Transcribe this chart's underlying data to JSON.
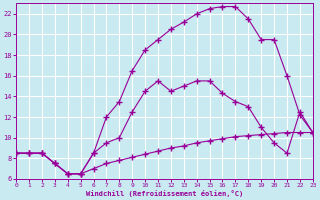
{
  "xlabel": "Windchill (Refroidissement éolien,°C)",
  "bg_color": "#c8eaf0",
  "line_color": "#990099",
  "grid_color": "#ffffff",
  "xmin": 0,
  "xmax": 23,
  "ymin": 6,
  "ymax": 23,
  "yticks": [
    6,
    8,
    10,
    12,
    14,
    16,
    18,
    20,
    22
  ],
  "xticks": [
    0,
    1,
    2,
    3,
    4,
    5,
    6,
    7,
    8,
    9,
    10,
    11,
    12,
    13,
    14,
    15,
    16,
    17,
    18,
    19,
    20,
    21,
    22,
    23
  ],
  "series1_x": [
    0,
    1,
    2,
    3,
    4,
    5,
    6,
    7,
    8,
    9,
    10,
    11,
    12,
    13,
    14,
    15,
    16,
    17,
    18,
    19,
    20,
    21,
    22,
    23
  ],
  "series1_y": [
    8.5,
    8.5,
    8.5,
    7.5,
    6.5,
    6.5,
    7.0,
    7.5,
    7.8,
    8.1,
    8.4,
    8.7,
    9.0,
    9.2,
    9.5,
    9.7,
    9.9,
    10.1,
    10.2,
    10.3,
    10.4,
    10.5,
    10.5,
    10.5
  ],
  "series2_x": [
    0,
    1,
    2,
    3,
    4,
    5,
    6,
    7,
    8,
    9,
    10,
    11,
    12,
    13,
    14,
    15,
    16,
    17,
    18,
    19,
    20,
    21,
    22,
    23
  ],
  "series2_y": [
    8.5,
    8.5,
    8.5,
    7.5,
    6.5,
    6.5,
    8.5,
    12.0,
    13.5,
    16.5,
    18.5,
    19.5,
    20.5,
    21.2,
    22.0,
    22.5,
    22.7,
    22.7,
    21.5,
    19.5,
    19.5,
    16.0,
    12.2,
    10.5
  ],
  "series3_x": [
    0,
    1,
    2,
    3,
    4,
    5,
    6,
    7,
    8,
    9,
    10,
    11,
    12,
    13,
    14,
    15,
    16,
    17,
    18,
    19,
    20,
    21,
    22,
    23
  ],
  "series3_y": [
    8.5,
    8.5,
    8.5,
    7.5,
    6.5,
    6.5,
    8.5,
    9.5,
    10.0,
    12.5,
    14.5,
    15.5,
    14.5,
    15.0,
    15.5,
    15.5,
    14.3,
    13.5,
    13.0,
    11.0,
    9.5,
    8.5,
    12.5,
    10.5
  ]
}
